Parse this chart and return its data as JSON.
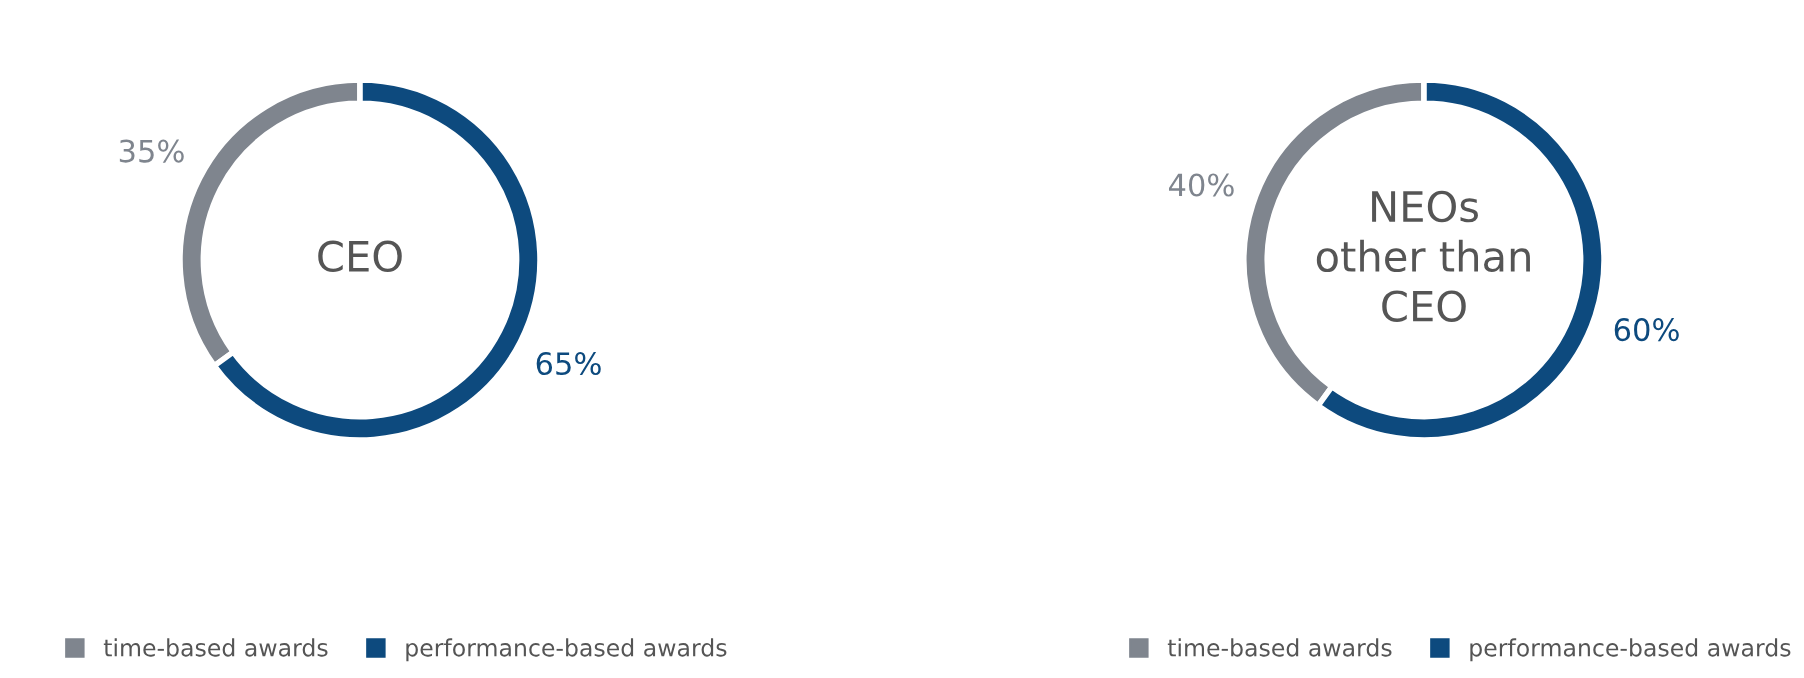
{
  "chart_data": [
    {
      "type": "donut",
      "title": "CEO",
      "categories": [
        "time-based awards",
        "performance-based awards"
      ],
      "values": [
        35,
        65
      ],
      "value_labels": [
        "35%",
        "65%"
      ],
      "colors": [
        "#7f858e",
        "#0d4a7e"
      ],
      "legend": "bottom"
    },
    {
      "type": "donut",
      "title": "NEOs\nother than\nCEO",
      "categories": [
        "time-based awards",
        "performance-based awards"
      ],
      "values": [
        40,
        60
      ],
      "value_labels": [
        "40%",
        "60%"
      ],
      "colors": [
        "#7f858e",
        "#0d4a7e"
      ],
      "legend": "bottom"
    }
  ]
}
